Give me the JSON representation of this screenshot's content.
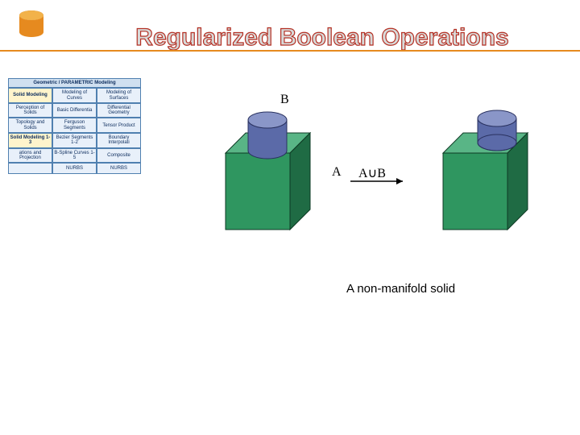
{
  "title": {
    "text": "Regularized Boolean Operations",
    "fill": "#d8dad9",
    "stroke": "#b43024",
    "stroke_width": 1.2,
    "fontsize": 30
  },
  "rule": {
    "color": "#e68a1f",
    "height": 2
  },
  "icon_cylinder": {
    "top_fill": "#f2b24a",
    "body_fill": "#e68a1f",
    "shadow": "#c86a10"
  },
  "nav": {
    "header": "Geometric / PARAMETRIC Modeling",
    "header_bg": "#d0e0f0",
    "header_border": "#5080b0",
    "cell_bg": "#e8f0fa",
    "highlight_bg": "#fff4cc",
    "rows": [
      [
        "Solid Modeling",
        "Modeling of Curves",
        "Modeling of Surfaces"
      ],
      [
        "Perception of Solids",
        "Basic Differentia",
        "Differential Geometry"
      ],
      [
        "Topology and Solids",
        "Ferguson Segments",
        "Tensor Product"
      ],
      [
        "Solid Modeling 1-3",
        "Bezier Segments 1-2",
        "Boundary Interpolati"
      ],
      [
        "ations and Projection",
        "B-Spline Curves 1-5",
        "Composite"
      ],
      [
        "",
        "NURBS",
        "NURBS"
      ]
    ],
    "highlights": [
      [
        0,
        0
      ],
      [
        3,
        0
      ]
    ]
  },
  "diagram": {
    "labels": {
      "A": "A",
      "B": "B",
      "result": "A∪B"
    },
    "cube": {
      "front": "#2f9660",
      "top": "#59b586",
      "side": "#1f6b44",
      "stroke": "#0e3a24"
    },
    "cyl": {
      "body": "#5b6aa8",
      "top": "#8a96c8",
      "shade": "#3e4a80",
      "stroke": "#2a3260"
    },
    "arrow": "#000000",
    "label_font": "serif"
  },
  "caption": "A non-manifold solid"
}
